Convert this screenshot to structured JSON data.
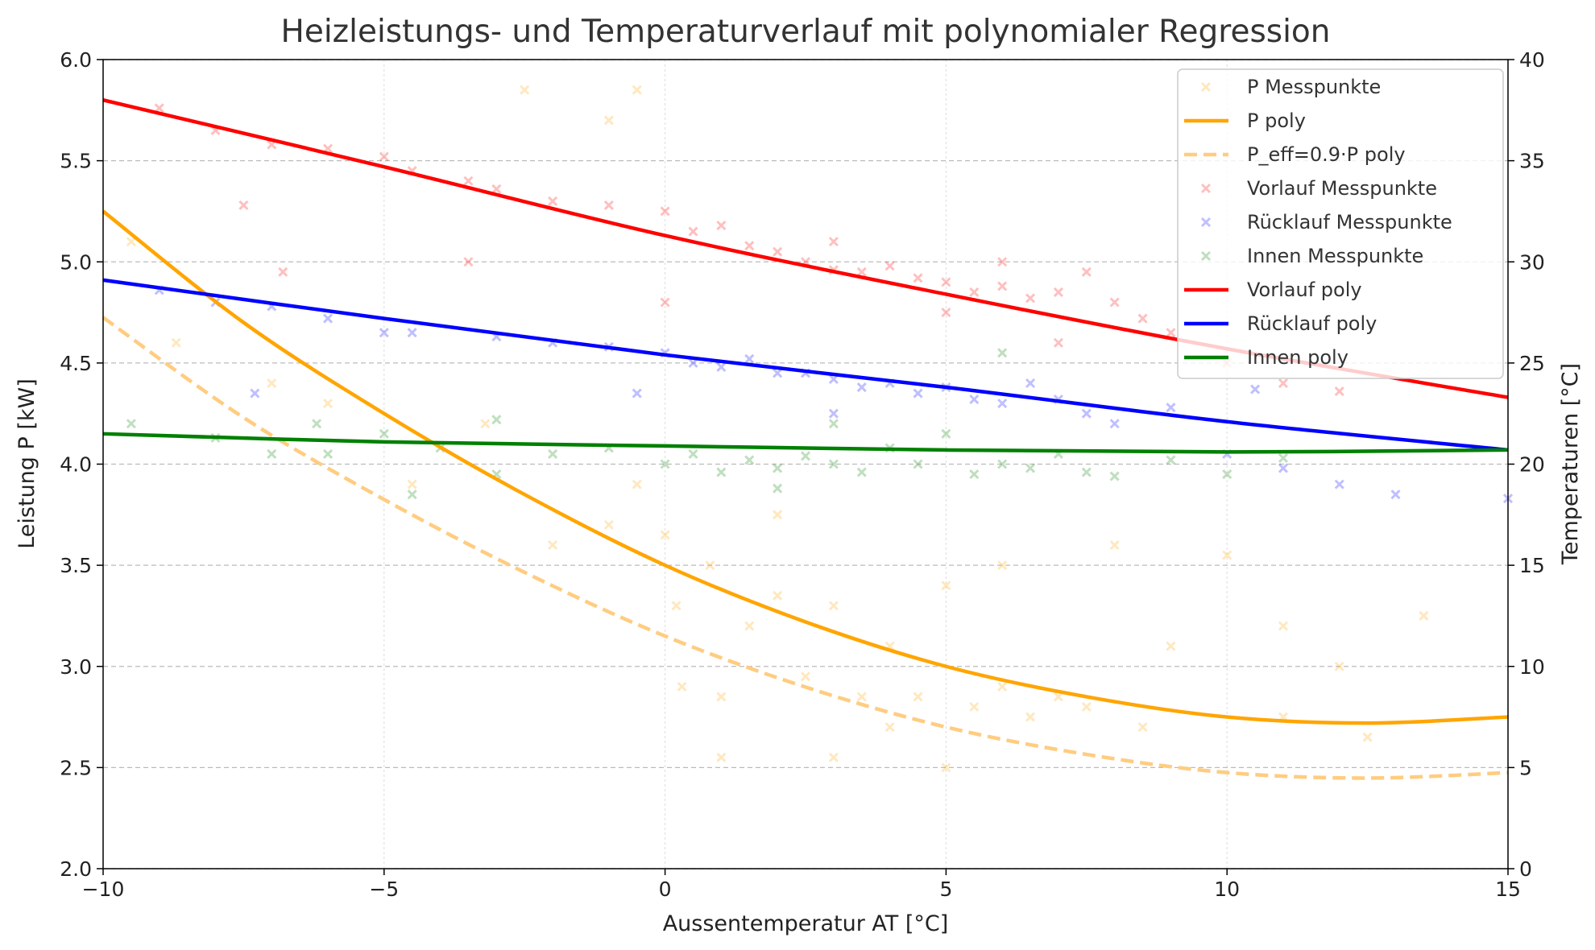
{
  "chart_data": {
    "type": "scatter",
    "title": "Heizleistungs- und Temperaturverlauf mit polynomialer Regression",
    "xlabel": "Aussentemperatur AT [°C]",
    "ylabel": "Leistung P [kW]",
    "y2label": "Temperaturen [°C]",
    "xlim": [
      -10,
      15
    ],
    "ylim": [
      2.0,
      6.0
    ],
    "y2lim": [
      0,
      40
    ],
    "xticks": [
      "−10",
      "−5",
      "0",
      "5",
      "10",
      "15"
    ],
    "xtick_values": [
      -10,
      -5,
      0,
      5,
      10,
      15
    ],
    "yticks": [
      "2.0",
      "2.5",
      "3.0",
      "3.5",
      "4.0",
      "4.5",
      "5.0",
      "5.5",
      "6.0"
    ],
    "ytick_values": [
      2.0,
      2.5,
      3.0,
      3.5,
      4.0,
      4.5,
      5.0,
      5.5,
      6.0
    ],
    "y2ticks": [
      "0",
      "5",
      "10",
      "15",
      "20",
      "25",
      "30",
      "35",
      "40"
    ],
    "y2tick_values": [
      0,
      5,
      10,
      15,
      20,
      25,
      30,
      35,
      40
    ],
    "grid": true,
    "legend_position": "top-right",
    "legend": [
      "P Messpunkte",
      "P poly",
      "P_eff=0.9·P poly",
      "Vorlauf Messpunkte",
      "Rücklauf Messpunkte",
      "Innen Messpunkte",
      "Vorlauf poly",
      "Rücklauf poly",
      "Innen poly"
    ],
    "series": [
      {
        "name": "P Messpunkte",
        "kind": "scatter",
        "axis": "left",
        "color": "#ffa500",
        "marker": "x",
        "points": [
          [
            -9.5,
            5.1
          ],
          [
            -8.7,
            4.6
          ],
          [
            -7,
            4.4
          ],
          [
            -6,
            4.3
          ],
          [
            -4.5,
            3.9
          ],
          [
            -3.2,
            4.2
          ],
          [
            -2.5,
            5.85
          ],
          [
            -1,
            5.7
          ],
          [
            -0.5,
            5.85
          ],
          [
            -2,
            3.6
          ],
          [
            -1,
            3.7
          ],
          [
            -0.5,
            3.9
          ],
          [
            0,
            3.65
          ],
          [
            0.2,
            3.3
          ],
          [
            0.3,
            2.9
          ],
          [
            0.8,
            3.5
          ],
          [
            1,
            2.85
          ],
          [
            1.5,
            3.2
          ],
          [
            2,
            3.35
          ],
          [
            2.5,
            2.95
          ],
          [
            3,
            3.3
          ],
          [
            3.5,
            2.85
          ],
          [
            4,
            3.1
          ],
          [
            4,
            2.7
          ],
          [
            4.5,
            2.85
          ],
          [
            5,
            3.4
          ],
          [
            5.5,
            2.8
          ],
          [
            6,
            2.9
          ],
          [
            6.5,
            2.75
          ],
          [
            7,
            2.85
          ],
          [
            7.5,
            2.8
          ],
          [
            8,
            3.6
          ],
          [
            8.5,
            2.7
          ],
          [
            9,
            3.1
          ],
          [
            10,
            3.55
          ],
          [
            11,
            3.2
          ],
          [
            12,
            3.0
          ],
          [
            13.5,
            3.25
          ],
          [
            12.5,
            2.65
          ],
          [
            3,
            2.55
          ],
          [
            5,
            2.5
          ],
          [
            1,
            2.55
          ],
          [
            11,
            2.75
          ],
          [
            6,
            3.5
          ],
          [
            2,
            3.75
          ]
        ]
      },
      {
        "name": "P poly",
        "kind": "line",
        "axis": "left",
        "color": "#ffa500",
        "points": [
          [
            -10,
            5.25
          ],
          [
            -7.5,
            4.7
          ],
          [
            -5,
            4.25
          ],
          [
            -2.5,
            3.85
          ],
          [
            0,
            3.5
          ],
          [
            2.5,
            3.22
          ],
          [
            5,
            3.0
          ],
          [
            7.5,
            2.85
          ],
          [
            10,
            2.75
          ],
          [
            12.5,
            2.72
          ],
          [
            15,
            2.75
          ]
        ]
      },
      {
        "name": "P_eff=0.9·P poly",
        "kind": "line",
        "axis": "left",
        "color": "#ffcc80",
        "dashed": true,
        "factor": 0.9,
        "of": "P poly"
      },
      {
        "name": "Vorlauf Messpunkte",
        "kind": "scatter",
        "axis": "right",
        "color": "#ff0000",
        "marker": "x",
        "points": [
          [
            -9,
            37.6
          ],
          [
            -8,
            36.5
          ],
          [
            -7,
            35.8
          ],
          [
            -6,
            35.6
          ],
          [
            -5,
            35.2
          ],
          [
            -4.5,
            34.5
          ],
          [
            -3.5,
            34
          ],
          [
            -3,
            33.6
          ],
          [
            -2,
            33
          ],
          [
            -1,
            32.8
          ],
          [
            0,
            32.5
          ],
          [
            0.5,
            31.5
          ],
          [
            1,
            31.8
          ],
          [
            1.5,
            30.8
          ],
          [
            2,
            30.5
          ],
          [
            2.5,
            30
          ],
          [
            3,
            29.6
          ],
          [
            3.5,
            29.5
          ],
          [
            4,
            29.8
          ],
          [
            4.5,
            29.2
          ],
          [
            5,
            29
          ],
          [
            5.5,
            28.5
          ],
          [
            6,
            28.8
          ],
          [
            6.5,
            28.2
          ],
          [
            7,
            28.5
          ],
          [
            7.5,
            29.5
          ],
          [
            8,
            28
          ],
          [
            8.5,
            27.2
          ],
          [
            9,
            26.5
          ],
          [
            10,
            25
          ],
          [
            11,
            24
          ],
          [
            12,
            23.6
          ],
          [
            3,
            31
          ],
          [
            6,
            30
          ],
          [
            -7.5,
            32.8
          ],
          [
            -6.8,
            29.5
          ],
          [
            -3.5,
            30
          ],
          [
            0,
            28
          ],
          [
            5,
            27.5
          ],
          [
            7,
            26
          ]
        ]
      },
      {
        "name": "Rücklauf Messpunkte",
        "kind": "scatter",
        "axis": "right",
        "color": "#0000ff",
        "marker": "x",
        "points": [
          [
            -9,
            28.6
          ],
          [
            -8,
            28
          ],
          [
            -7,
            27.8
          ],
          [
            -6,
            27.2
          ],
          [
            -5,
            26.5
          ],
          [
            -4.5,
            26.5
          ],
          [
            -3,
            26.3
          ],
          [
            -2,
            26
          ],
          [
            -1,
            25.8
          ],
          [
            0,
            25.5
          ],
          [
            0.5,
            25
          ],
          [
            1,
            24.8
          ],
          [
            1.5,
            25.2
          ],
          [
            2,
            24.5
          ],
          [
            2.5,
            24.5
          ],
          [
            3,
            24.2
          ],
          [
            3.5,
            23.8
          ],
          [
            4,
            24
          ],
          [
            4.5,
            23.5
          ],
          [
            5,
            23.8
          ],
          [
            5.5,
            23.2
          ],
          [
            6,
            23
          ],
          [
            6.5,
            24
          ],
          [
            7,
            23.2
          ],
          [
            7.5,
            22.5
          ],
          [
            8,
            22
          ],
          [
            9,
            22.8
          ],
          [
            10,
            20.5
          ],
          [
            11,
            19.8
          ],
          [
            12,
            19
          ],
          [
            13,
            18.5
          ],
          [
            15,
            18.3
          ],
          [
            -0.5,
            23.5
          ],
          [
            -7.3,
            23.5
          ],
          [
            3,
            22.5
          ],
          [
            10.5,
            23.7
          ]
        ]
      },
      {
        "name": "Innen Messpunkte",
        "kind": "scatter",
        "axis": "right",
        "color": "#008000",
        "marker": "x",
        "points": [
          [
            -9.5,
            22
          ],
          [
            -8,
            21.3
          ],
          [
            -7,
            20.5
          ],
          [
            -6,
            20.5
          ],
          [
            -5,
            21.5
          ],
          [
            -4,
            20.8
          ],
          [
            -3,
            22.2
          ],
          [
            -2,
            20.5
          ],
          [
            -1,
            20.8
          ],
          [
            0,
            20
          ],
          [
            0.5,
            20.5
          ],
          [
            1,
            19.6
          ],
          [
            1.5,
            20.2
          ],
          [
            2,
            19.8
          ],
          [
            2.5,
            20.4
          ],
          [
            3,
            20
          ],
          [
            3.5,
            19.6
          ],
          [
            4,
            20.8
          ],
          [
            4.5,
            20
          ],
          [
            5,
            21.5
          ],
          [
            5.5,
            19.5
          ],
          [
            6,
            20
          ],
          [
            6.5,
            19.8
          ],
          [
            7,
            20.5
          ],
          [
            7.5,
            19.6
          ],
          [
            8,
            19.4
          ],
          [
            9,
            20.2
          ],
          [
            10,
            19.5
          ],
          [
            11,
            20.3
          ],
          [
            -4.5,
            18.5
          ],
          [
            -3,
            19.5
          ],
          [
            3,
            22
          ],
          [
            6,
            25.5
          ],
          [
            2,
            18.8
          ],
          [
            -6.2,
            22
          ]
        ]
      },
      {
        "name": "Vorlauf poly",
        "kind": "line",
        "axis": "right",
        "color": "#ff0000",
        "points": [
          [
            -10,
            38.0
          ],
          [
            -5,
            34.7
          ],
          [
            0,
            31.3
          ],
          [
            5,
            28.4
          ],
          [
            10,
            25.7
          ],
          [
            15,
            23.3
          ]
        ]
      },
      {
        "name": "Rücklauf poly",
        "kind": "line",
        "axis": "right",
        "color": "#0000ff",
        "points": [
          [
            -10,
            29.1
          ],
          [
            -5,
            27.2
          ],
          [
            0,
            25.4
          ],
          [
            5,
            23.8
          ],
          [
            10,
            22.1
          ],
          [
            15,
            20.7
          ]
        ]
      },
      {
        "name": "Innen poly",
        "kind": "line",
        "axis": "right",
        "color": "#008000",
        "points": [
          [
            -10,
            21.5
          ],
          [
            -5,
            21.1
          ],
          [
            0,
            20.9
          ],
          [
            5,
            20.7
          ],
          [
            10,
            20.6
          ],
          [
            15,
            20.7
          ]
        ]
      }
    ]
  }
}
